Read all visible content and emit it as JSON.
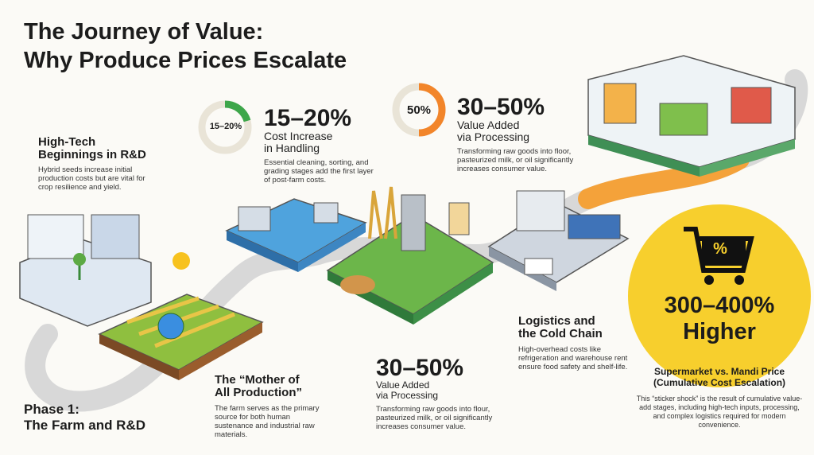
{
  "title": [
    "The Journey of Value:",
    "Why Produce Prices Escalate"
  ],
  "rnd": {
    "heading": [
      "High-Tech",
      "Beginnings in R&D"
    ],
    "body": "Hybrid seeds increase initial production costs but are vital for crop resilience and yield."
  },
  "handling": {
    "donut_label": "15–20%",
    "stat": "15–20%",
    "subtitle": [
      "Cost Increase",
      "in Handling"
    ],
    "body": "Essential cleaning, sorting, and grading stages add the first layer of post-farm costs."
  },
  "processing_top": {
    "donut_label": "50%",
    "stat": "30–50%",
    "subtitle": [
      "Value Added",
      "via Processing"
    ],
    "body": "Transforming raw goods into floor, pasteurized milk, or oil significantly increases consumer value."
  },
  "phase1": [
    "Phase 1:",
    "The Farm and R&D"
  ],
  "mother": {
    "heading": [
      "The “Mother of",
      "All Production”"
    ],
    "body": "The farm serves as the primary source for both human sustenance and industrial raw materials."
  },
  "processing_bottom": {
    "stat": "30–50%",
    "subtitle": [
      "Value Added",
      "via Processing"
    ],
    "body": "Transforming raw goods into flour, pasteurized milk, or oil significantly increases consumer value."
  },
  "logistics": {
    "heading": [
      "Logistics and",
      "the Cold Chain"
    ],
    "body": "High-overhead costs like refrigeration and warehouse rent ensure food safety and shelf-life."
  },
  "supermarket": {
    "icon": "%",
    "stat": [
      "300–400%",
      "Higher"
    ],
    "heading": [
      "Supermarket vs. Mandi Price",
      "(Cumulative Cost Escalation)"
    ],
    "body": "This “sticker shock” is the result of cumulative value-add stages, including high-tech inputs, processing, and complex logistics required for modern convenience."
  }
}
